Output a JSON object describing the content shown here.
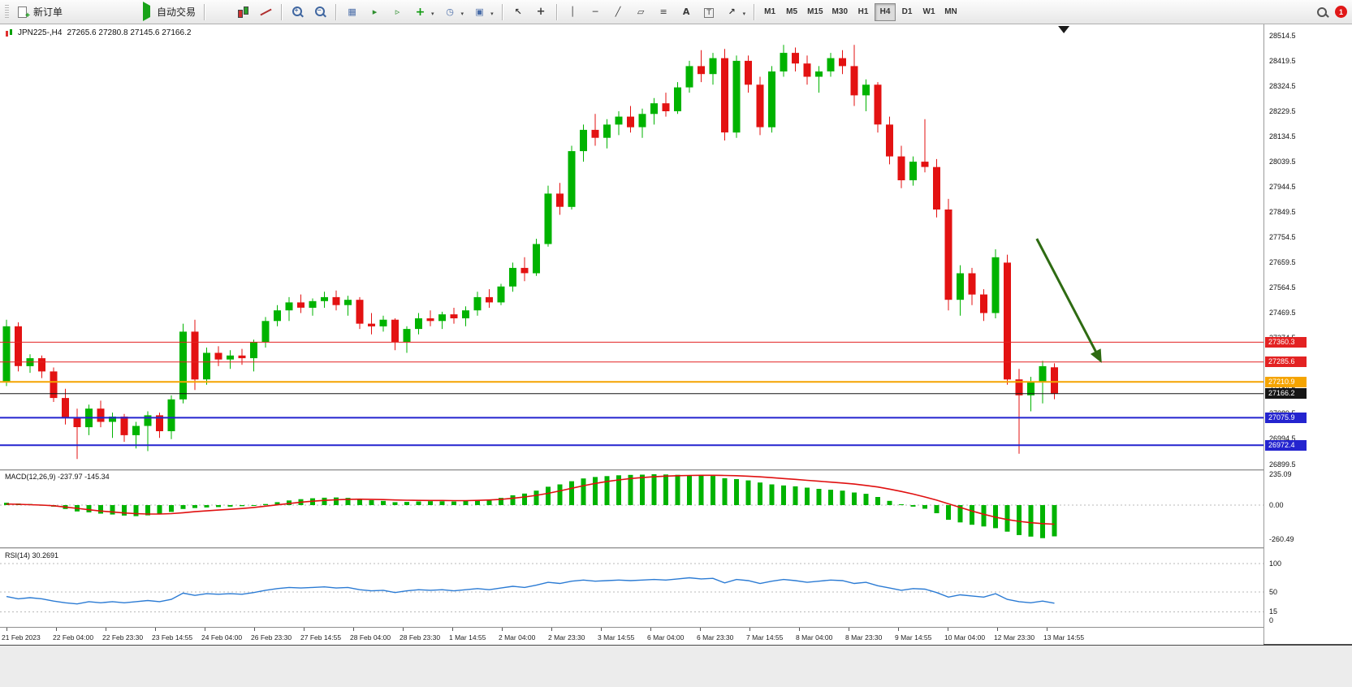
{
  "toolbar": {
    "new_order_label": "新订单",
    "autotrade_label": "自动交易",
    "timeframes": [
      "M1",
      "M5",
      "M15",
      "M30",
      "H1",
      "H4",
      "D1",
      "W1",
      "MN"
    ],
    "active_timeframe": "H4",
    "notification_count": "1"
  },
  "chart": {
    "symbol_period": "JPN225-,H4",
    "ohlc_text": "27265.6 27280.8 27145.6 27166.2"
  },
  "indicators": {
    "macd": {
      "label": "MACD(12,26,9)",
      "value_main": "-237.97",
      "value_signal": "-145.34"
    },
    "rsi": {
      "label": "RSI(14)",
      "value": "30.2691"
    }
  },
  "chart_data": [
    {
      "type": "candlestick",
      "title": "JPN225-,H4 27265.6 27280.8 27145.6 27166.2",
      "symbol": "JPN225-",
      "timeframe": "H4",
      "last_ohlc": {
        "open": 27265.6,
        "high": 27280.8,
        "low": 27145.6,
        "close": 27166.2
      },
      "colors": {
        "bull": "#00b300",
        "bear": "#e31212"
      },
      "y_ticks": [
        28514.5,
        28419.5,
        28324.5,
        28229.5,
        28134.5,
        28039.5,
        27944.5,
        27849.5,
        27754.5,
        27659.5,
        27564.5,
        27469.5,
        27374.5,
        27279.5,
        27184.5,
        27089.5,
        26994.5,
        26899.5
      ],
      "x_labels": [
        "21 Feb 2023",
        "22 Feb 04:00",
        "22 Feb 23:30",
        "23 Feb 14:55",
        "24 Feb 04:00",
        "26 Feb 23:30",
        "27 Feb 14:55",
        "28 Feb 04:00",
        "28 Feb 23:30",
        "1 Mar 14:55",
        "2 Mar 04:00",
        "2 Mar 23:30",
        "3 Mar 14:55",
        "6 Mar 04:00",
        "6 Mar 23:30",
        "7 Mar 14:55",
        "8 Mar 04:00",
        "8 Mar 23:30",
        "9 Mar 14:55",
        "10 Mar 04:00",
        "12 Mar 23:30",
        "13 Mar 14:55"
      ],
      "hlines": [
        {
          "price": 27360.3,
          "label": "27360.3",
          "color": "#e32222",
          "width": 1
        },
        {
          "price": 27285.6,
          "label": "27285.6",
          "color": "#e32222",
          "width": 1
        },
        {
          "price": 27210.9,
          "label": "27210.9",
          "color": "#f5a400",
          "width": 2
        },
        {
          "price": 27166.2,
          "label": "27166.2",
          "color": "#151515",
          "width": 1,
          "role": "current-price"
        },
        {
          "price": 27075.9,
          "label": "27075.9",
          "color": "#2424cf",
          "width": 2
        },
        {
          "price": 26972.4,
          "label": "26972.4",
          "color": "#2424cf",
          "width": 2
        }
      ],
      "annotations": {
        "down_arrow": {
          "from": {
            "bar": 87.5,
            "price": 27750
          },
          "to": {
            "bar": 92.9,
            "price": 27292
          },
          "color": "#2e6b12"
        },
        "top_marker": {
          "bar": 89.8
        }
      },
      "candles": [
        [
          27210,
          27445,
          27195,
          27420
        ],
        [
          27420,
          27435,
          27250,
          27270
        ],
        [
          27270,
          27315,
          27245,
          27300
        ],
        [
          27300,
          27310,
          27225,
          27250
        ],
        [
          27250,
          27265,
          27135,
          27150
        ],
        [
          27150,
          27185,
          27050,
          27075
        ],
        [
          27075,
          27110,
          26920,
          27040
        ],
        [
          27040,
          27125,
          27010,
          27110
        ],
        [
          27110,
          27140,
          27040,
          27060
        ],
        [
          27060,
          27095,
          27000,
          27080
        ],
        [
          27080,
          27090,
          26985,
          27010
        ],
        [
          27010,
          27060,
          26960,
          27045
        ],
        [
          27045,
          27100,
          26950,
          27085
        ],
        [
          27085,
          27095,
          27000,
          27025
        ],
        [
          27025,
          27160,
          26995,
          27145
        ],
        [
          27145,
          27430,
          27130,
          27400
        ],
        [
          27400,
          27445,
          27180,
          27220
        ],
        [
          27220,
          27340,
          27200,
          27320
        ],
        [
          27320,
          27345,
          27270,
          27295
        ],
        [
          27295,
          27330,
          27260,
          27310
        ],
        [
          27310,
          27335,
          27275,
          27300
        ],
        [
          27300,
          27370,
          27250,
          27360
        ],
        [
          27360,
          27455,
          27340,
          27440
        ],
        [
          27440,
          27500,
          27420,
          27480
        ],
        [
          27480,
          27530,
          27440,
          27510
        ],
        [
          27510,
          27540,
          27470,
          27490
        ],
        [
          27490,
          27525,
          27460,
          27515
        ],
        [
          27515,
          27550,
          27490,
          27530
        ],
        [
          27530,
          27555,
          27480,
          27500
        ],
        [
          27500,
          27535,
          27460,
          27520
        ],
        [
          27520,
          27530,
          27410,
          27430
        ],
        [
          27430,
          27470,
          27390,
          27420
        ],
        [
          27420,
          27460,
          27400,
          27445
        ],
        [
          27445,
          27450,
          27330,
          27360
        ],
        [
          27360,
          27420,
          27320,
          27410
        ],
        [
          27410,
          27470,
          27390,
          27450
        ],
        [
          27450,
          27480,
          27420,
          27440
        ],
        [
          27440,
          27475,
          27410,
          27465
        ],
        [
          27465,
          27490,
          27430,
          27450
        ],
        [
          27450,
          27495,
          27420,
          27480
        ],
        [
          27480,
          27550,
          27460,
          27530
        ],
        [
          27530,
          27560,
          27490,
          27510
        ],
        [
          27510,
          27580,
          27500,
          27570
        ],
        [
          27570,
          27660,
          27550,
          27640
        ],
        [
          27640,
          27680,
          27590,
          27620
        ],
        [
          27620,
          27750,
          27610,
          27730
        ],
        [
          27730,
          27950,
          27720,
          27920
        ],
        [
          27920,
          27960,
          27840,
          27870
        ],
        [
          27870,
          28100,
          27860,
          28080
        ],
        [
          28080,
          28180,
          28040,
          28160
        ],
        [
          28160,
          28220,
          28100,
          28130
        ],
        [
          28130,
          28200,
          28090,
          28180
        ],
        [
          28180,
          28230,
          28140,
          28210
        ],
        [
          28210,
          28250,
          28150,
          28170
        ],
        [
          28170,
          28240,
          28130,
          28220
        ],
        [
          28220,
          28280,
          28180,
          28260
        ],
        [
          28260,
          28300,
          28210,
          28230
        ],
        [
          28230,
          28340,
          28220,
          28320
        ],
        [
          28320,
          28420,
          28300,
          28400
        ],
        [
          28400,
          28460,
          28340,
          28370
        ],
        [
          28370,
          28450,
          28330,
          28430
        ],
        [
          28430,
          28465,
          28120,
          28150
        ],
        [
          28150,
          28440,
          28130,
          28420
        ],
        [
          28420,
          28440,
          28300,
          28330
        ],
        [
          28330,
          28360,
          28140,
          28170
        ],
        [
          28170,
          28400,
          28150,
          28380
        ],
        [
          28380,
          28480,
          28360,
          28450
        ],
        [
          28450,
          28470,
          28380,
          28410
        ],
        [
          28410,
          28440,
          28330,
          28360
        ],
        [
          28360,
          28400,
          28300,
          28380
        ],
        [
          28380,
          28450,
          28360,
          28430
        ],
        [
          28430,
          28460,
          28370,
          28400
        ],
        [
          28400,
          28480,
          28250,
          28290
        ],
        [
          28290,
          28350,
          28230,
          28330
        ],
        [
          28330,
          28340,
          28150,
          28180
        ],
        [
          28180,
          28210,
          28030,
          28060
        ],
        [
          28060,
          28100,
          27940,
          27970
        ],
        [
          27970,
          28060,
          27950,
          28040
        ],
        [
          28040,
          28200,
          28000,
          28020
        ],
        [
          28020,
          28050,
          27830,
          27860
        ],
        [
          27860,
          27900,
          27480,
          27520
        ],
        [
          27520,
          27650,
          27460,
          27620
        ],
        [
          27620,
          27640,
          27500,
          27540
        ],
        [
          27540,
          27560,
          27440,
          27470
        ],
        [
          27470,
          27710,
          27450,
          27680
        ],
        [
          27660,
          27690,
          27200,
          27220
        ],
        [
          27220,
          27260,
          26940,
          27160
        ],
        [
          27160,
          27230,
          27100,
          27210
        ],
        [
          27210,
          27290,
          27130,
          27270
        ],
        [
          27265.6,
          27280.8,
          27145.6,
          27166.2
        ]
      ]
    },
    {
      "type": "bar",
      "name": "MACD(12,26,9)",
      "current": {
        "main": -237.97,
        "signal": -145.34
      },
      "colors": {
        "histogram": "#00b300",
        "signal": "#e01010"
      },
      "y_ticks": [
        {
          "v": 235.09,
          "label": "235.09"
        },
        {
          "v": 0,
          "label": "0.00"
        },
        {
          "v": -260.49,
          "label": "-260.49"
        }
      ],
      "histogram": [
        18,
        12,
        8,
        2,
        -12,
        -30,
        -48,
        -55,
        -65,
        -72,
        -80,
        -84,
        -78,
        -68,
        -52,
        -30,
        -22,
        -18,
        -15,
        -12,
        -8,
        -2,
        8,
        22,
        35,
        45,
        52,
        56,
        58,
        55,
        46,
        38,
        32,
        22,
        24,
        28,
        30,
        29,
        27,
        31,
        38,
        43,
        55,
        75,
        88,
        110,
        140,
        158,
        182,
        203,
        214,
        221,
        227,
        230,
        232,
        235,
        233,
        231,
        229,
        226,
        222,
        205,
        198,
        188,
        172,
        158,
        150,
        143,
        133,
        124,
        117,
        110,
        96,
        86,
        62,
        32,
        6,
        -12,
        -28,
        -62,
        -112,
        -132,
        -150,
        -163,
        -176,
        -202,
        -228,
        -240,
        -252,
        -238
      ],
      "signal": [
        8,
        6,
        3,
        0,
        -5,
        -15,
        -25,
        -35,
        -45,
        -52,
        -60,
        -65,
        -68,
        -68,
        -65,
        -58,
        -50,
        -44,
        -38,
        -32,
        -26,
        -18,
        -8,
        2,
        12,
        22,
        30,
        36,
        41,
        44,
        45,
        44,
        42,
        39,
        37,
        36,
        35,
        35,
        34,
        34,
        36,
        39,
        44,
        52,
        62,
        74,
        90,
        108,
        128,
        148,
        165,
        180,
        192,
        202,
        210,
        216,
        221,
        224,
        226,
        227,
        227,
        226,
        224,
        220,
        215,
        209,
        202,
        196,
        189,
        182,
        175,
        168,
        160,
        150,
        138,
        122,
        104,
        84,
        62,
        38,
        10,
        -18,
        -45,
        -70,
        -92,
        -110,
        -124,
        -134,
        -141,
        -145.34
      ]
    },
    {
      "type": "line",
      "name": "RSI(14)",
      "current": 30.2691,
      "color": "#2b7bd4",
      "y_ticks": [
        {
          "v": 100,
          "label": "100"
        },
        {
          "v": 50,
          "label": "50"
        },
        {
          "v": 15,
          "label": "15"
        },
        {
          "v": 0,
          "label": "0"
        }
      ],
      "levels": [
        100,
        50,
        15
      ],
      "values": [
        42,
        38,
        40,
        38,
        34,
        31,
        29,
        33,
        31,
        33,
        31,
        33,
        35,
        33,
        37,
        48,
        44,
        47,
        46,
        47,
        46,
        49,
        53,
        56,
        58,
        57,
        58,
        59,
        57,
        58,
        54,
        52,
        53,
        49,
        52,
        54,
        53,
        54,
        52,
        54,
        56,
        54,
        57,
        60,
        58,
        62,
        67,
        65,
        69,
        71,
        69,
        70,
        71,
        70,
        71,
        72,
        71,
        73,
        75,
        73,
        74,
        66,
        72,
        70,
        65,
        69,
        72,
        70,
        67,
        69,
        71,
        70,
        65,
        67,
        61,
        57,
        53,
        56,
        55,
        49,
        41,
        45,
        43,
        41,
        47,
        37,
        33,
        31,
        34,
        30.27
      ]
    }
  ]
}
